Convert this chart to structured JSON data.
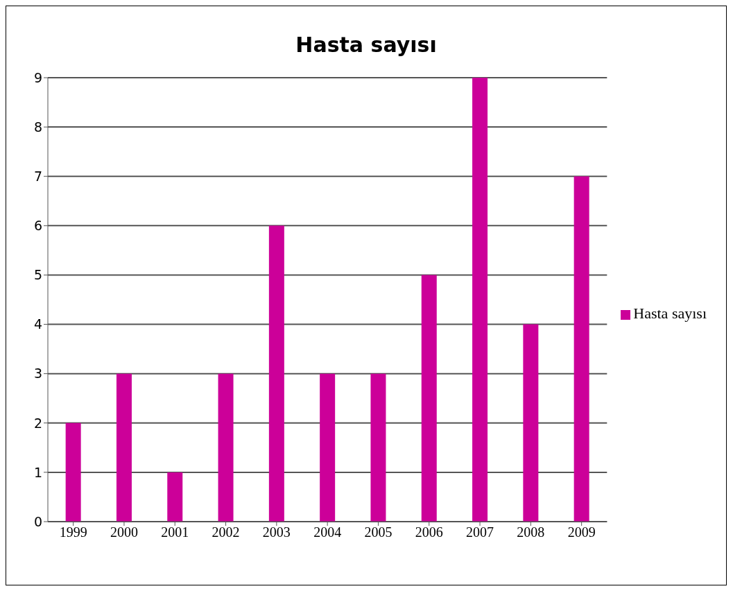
{
  "chart_data": {
    "type": "bar",
    "title": "Hasta sayısı",
    "categories": [
      "1999",
      "2000",
      "2001",
      "2002",
      "2003",
      "2004",
      "2005",
      "2006",
      "2007",
      "2008",
      "2009"
    ],
    "series": [
      {
        "name": "Hasta sayısı",
        "color": "#cc0099",
        "values": [
          2,
          3,
          1,
          3,
          6,
          3,
          3,
          5,
          9,
          4,
          7
        ]
      }
    ],
    "ylim": [
      0,
      9
    ],
    "yticks": [
      0,
      1,
      2,
      3,
      4,
      5,
      6,
      7,
      8,
      9
    ],
    "grid": "y",
    "legend": "right"
  }
}
